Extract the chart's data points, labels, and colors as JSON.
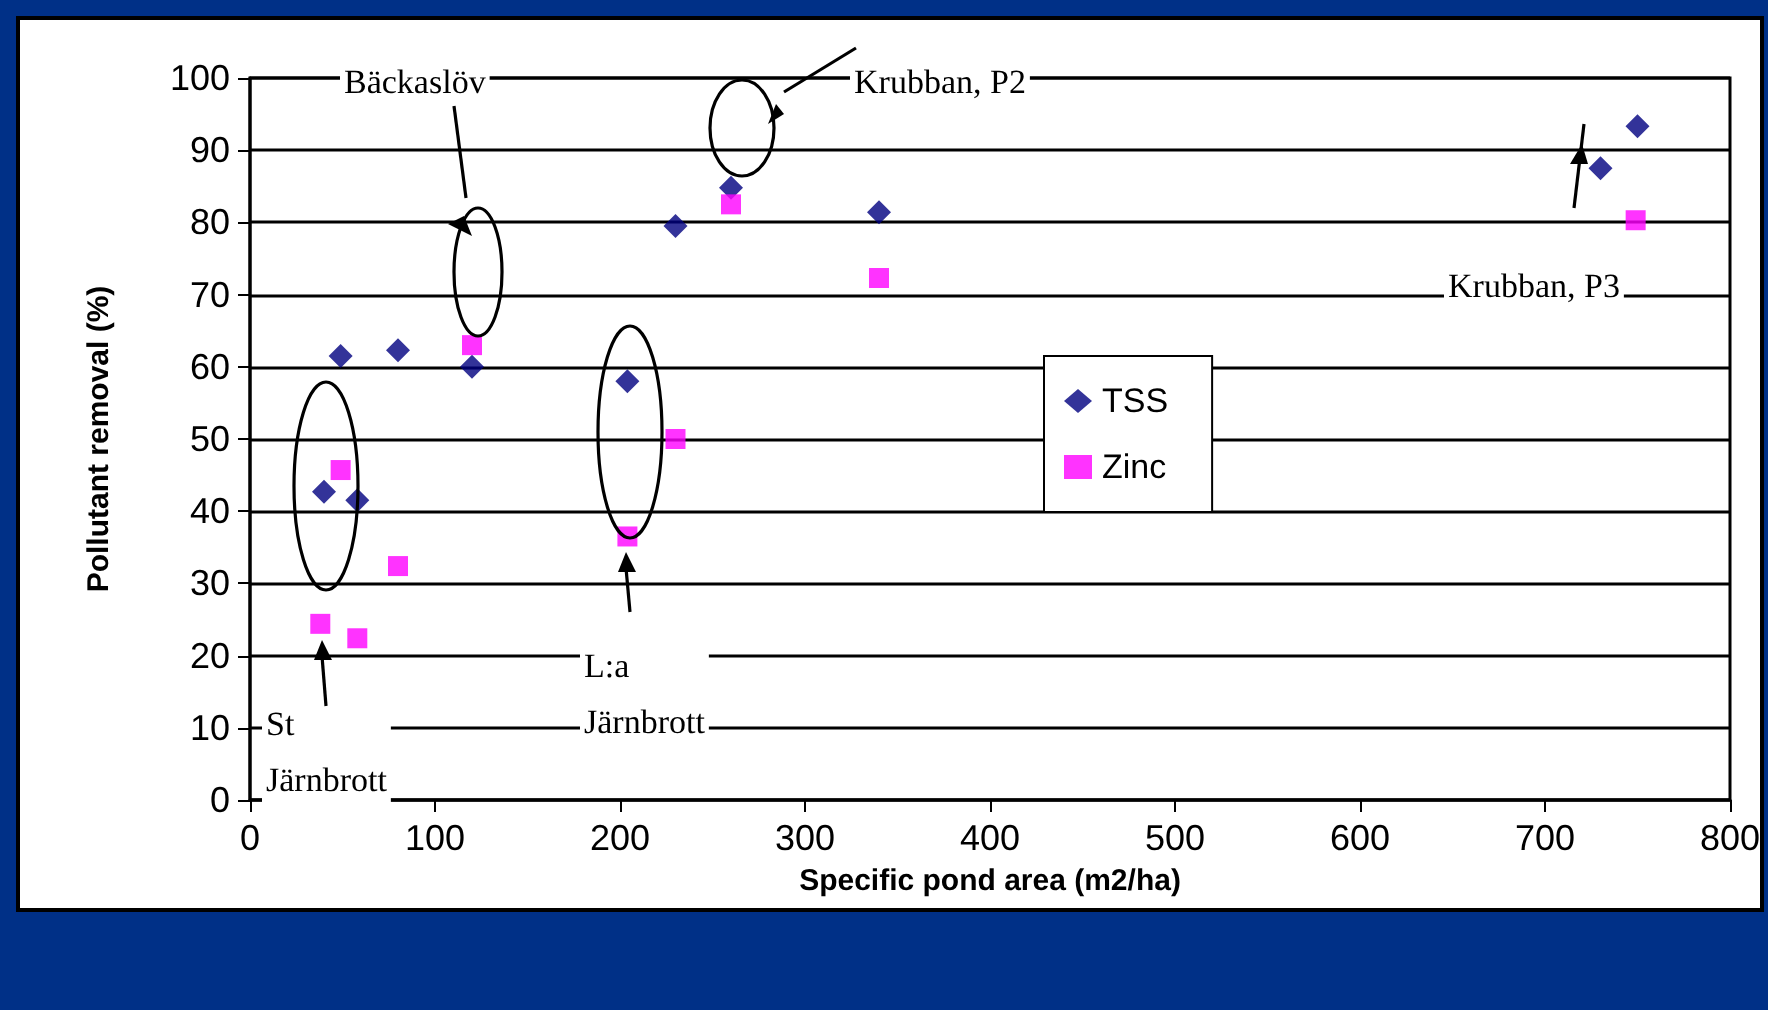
{
  "chart_data": {
    "type": "scatter",
    "xlabel": "Specific pond area (m2/ha)",
    "ylabel": "Pollutant removal (%)",
    "xlim": [
      0,
      800
    ],
    "xticks": [
      0,
      100,
      200,
      300,
      400,
      500,
      600,
      700,
      800
    ],
    "ylim": [
      0,
      100
    ],
    "yticks": [
      0,
      10,
      20,
      30,
      40,
      50,
      60,
      70,
      80,
      90,
      100
    ],
    "grid": "y",
    "legend": "right",
    "series": [
      {
        "name": "TSS",
        "color": "#000080",
        "marker": "diamond",
        "x": [
          40,
          49,
          58,
          80,
          120,
          204,
          230,
          260,
          340,
          730,
          750
        ],
        "values": [
          42.7,
          61.5,
          41.5,
          62.3,
          60,
          58,
          79.5,
          84.8,
          81.4,
          87.5,
          93.3
        ]
      },
      {
        "name": "Zinc",
        "color": "#ff00ff",
        "marker": "square",
        "x": [
          38,
          49,
          58,
          80,
          120,
          204,
          230,
          260,
          340,
          749
        ],
        "values": [
          24.4,
          45.7,
          22.4,
          32.4,
          63,
          36.5,
          50,
          82.5,
          72.3,
          80.3
        ]
      }
    ],
    "annotations": [
      "St\nJärnbrott",
      "L:a\nJärnbrott",
      "Bäckaslöv",
      "Krubban, P2",
      "Krubban, P3"
    ]
  }
}
